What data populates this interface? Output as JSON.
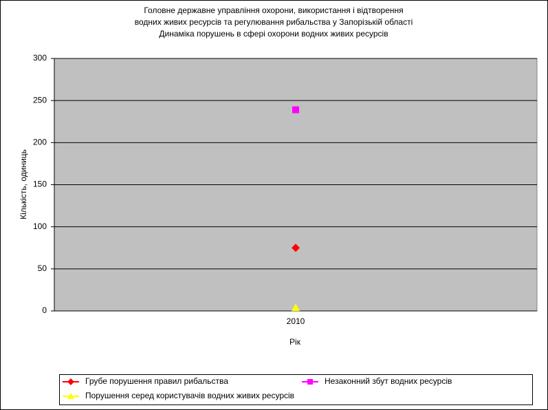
{
  "chart_data": {
    "type": "line",
    "title": [
      "Головне державне управління охорони, використання і відтворення",
      "водних живих ресурсів та регулювання рибальства у Запорізькій області",
      "Динаміка порушень в сфері охорони водних живих ресурсів"
    ],
    "x_label": "Рік",
    "y_label": "Кількість, одиниць",
    "categories": [
      "2010"
    ],
    "series": [
      {
        "name": "Грубе порушення правил рибальства",
        "color": "#ff0000",
        "marker": "diamond",
        "values": [
          75
        ]
      },
      {
        "name": "Незаконний збут водних ресурсів",
        "color": "#ff00ff",
        "marker": "square",
        "values": [
          239
        ]
      },
      {
        "name": "Порушення серед користувачів водних живих ресурсів",
        "color": "#ffff00",
        "marker": "triangle",
        "values": [
          4
        ]
      }
    ],
    "ylim": [
      0,
      300
    ],
    "yticks": [
      0,
      50,
      100,
      150,
      200,
      250,
      300
    ],
    "grid": true,
    "legend": "bottom"
  }
}
